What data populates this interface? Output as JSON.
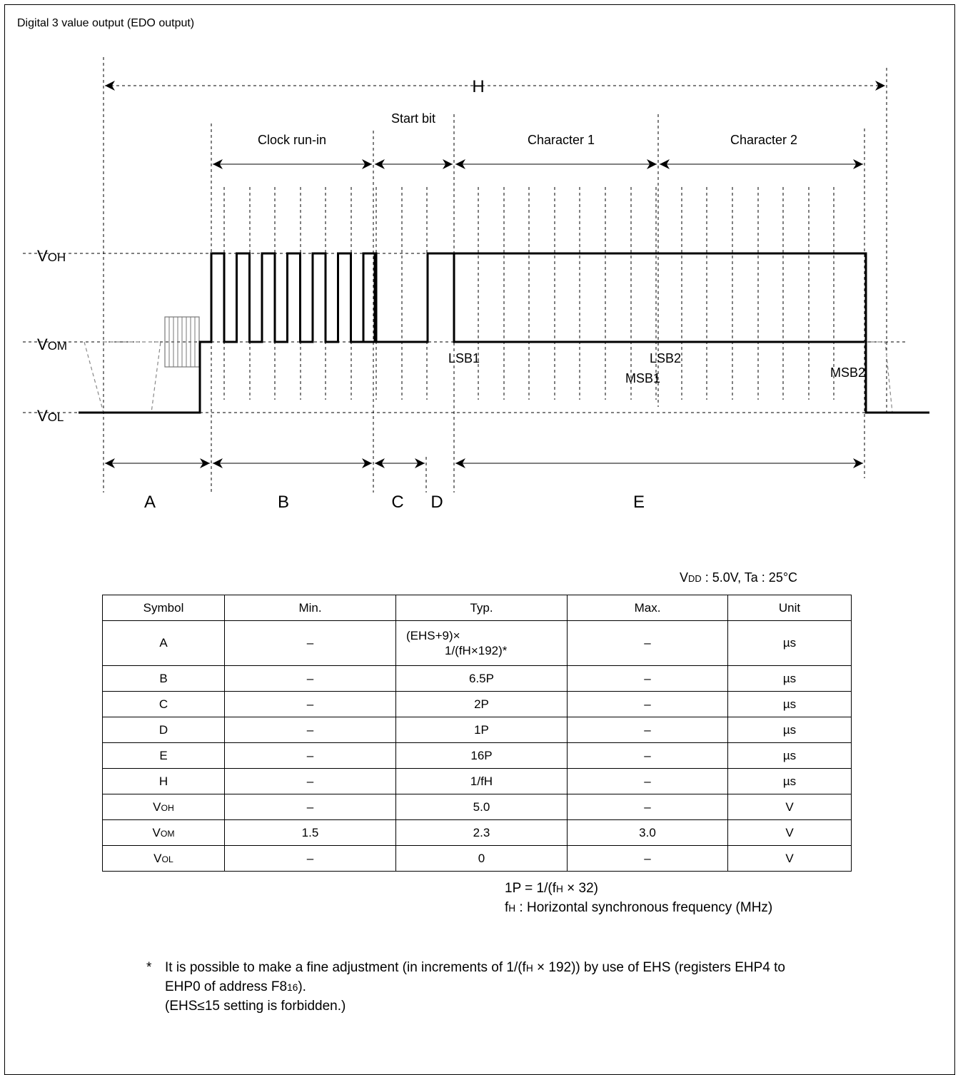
{
  "title": "Digital 3 value output (EDO output)",
  "timing": {
    "total_label": "H",
    "start_bit_label": "Start bit",
    "clock_run_in_label": "Clock run-in",
    "character1_label": "Character 1",
    "character2_label": "Character 2",
    "level_high": {
      "main": "V",
      "sub": "OH"
    },
    "level_mid": {
      "main": "V",
      "sub": "OM"
    },
    "level_low": {
      "main": "V",
      "sub": "OL"
    },
    "lsb1": "LSB1",
    "lsb2": "LSB2",
    "msb1": "MSB1",
    "msb2": "MSB2",
    "seg_a": "A",
    "seg_b": "B",
    "seg_c": "C",
    "seg_d": "D",
    "seg_e": "E"
  },
  "conditions": {
    "vdd_main": "V",
    "vdd_sub": "DD",
    "rest": " : 5.0V, Ta : 25°C"
  },
  "table": {
    "headers": [
      "Symbol",
      "Min.",
      "Typ.",
      "Max.",
      "Unit"
    ],
    "rows": [
      {
        "symbol": "A",
        "symbol_sub": "",
        "min": "–",
        "typ_line1": "(EHS+9)×",
        "typ_line2": "1/(fH×192)*",
        "max": "–",
        "unit": "µs"
      },
      {
        "symbol": "B",
        "symbol_sub": "",
        "min": "–",
        "typ": "6.5P",
        "max": "–",
        "unit": "µs"
      },
      {
        "symbol": "C",
        "symbol_sub": "",
        "min": "–",
        "typ": "2P",
        "max": "–",
        "unit": "µs"
      },
      {
        "symbol": "D",
        "symbol_sub": "",
        "min": "–",
        "typ": "1P",
        "max": "–",
        "unit": "µs"
      },
      {
        "symbol": "E",
        "symbol_sub": "",
        "min": "–",
        "typ": "16P",
        "max": "–",
        "unit": "µs"
      },
      {
        "symbol": "H",
        "symbol_sub": "",
        "min": "–",
        "typ": "1/fH",
        "max": "–",
        "unit": "µs"
      },
      {
        "symbol": "V",
        "symbol_sub": "OH",
        "min": "–",
        "typ": "5.0",
        "max": "–",
        "unit": "V"
      },
      {
        "symbol": "V",
        "symbol_sub": "OM",
        "min": "1.5",
        "typ": "2.3",
        "max": "3.0",
        "unit": "V"
      },
      {
        "symbol": "V",
        "symbol_sub": "OL",
        "min": "–",
        "typ": "0",
        "max": "–",
        "unit": "V"
      }
    ]
  },
  "notes": {
    "line1_a": "1P = 1/(f",
    "line1_sub": "H",
    "line1_b": " × 32)",
    "line2_a": "f",
    "line2_sub": "H",
    "line2_b": " : Horizontal synchronous frequency (MHz)"
  },
  "footnote": {
    "star": "*",
    "l1_a": "It is possible to make a fine adjustment (in increments of 1/(f",
    "l1_sub": "H",
    "l1_b": " × 192)) by use of EHS (registers EHP4 to",
    "l2_a": "EHP0 of address F8",
    "l2_sub": "16",
    "l2_b": ").",
    "l3": "(EHS≤15 setting is forbidden.)"
  }
}
